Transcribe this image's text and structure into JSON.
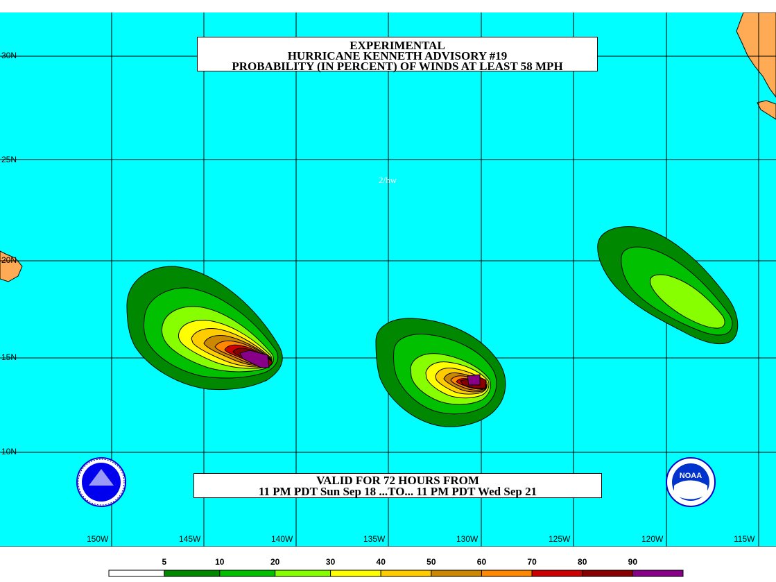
{
  "title": {
    "line1": "EXPERIMENTAL",
    "line2": "HURRICANE KENNETH ADVISORY #19",
    "line3": "PROBABILITY (IN PERCENT) OF WINDS AT LEAST 58 MPH"
  },
  "valid": {
    "line1": "VALID FOR 72 HOURS FROM",
    "line2": "11 PM PDT Sun Sep 18 ...TO... 11 PM PDT Wed Sep 21"
  },
  "note": "2/hw",
  "lat_labels": [
    "30N",
    "25N",
    "20N",
    "15N",
    "10N"
  ],
  "lon_labels": [
    "150W",
    "145W",
    "140W",
    "135W",
    "130W",
    "125W",
    "120W",
    "115W"
  ],
  "scale": {
    "labels": [
      "5",
      "10",
      "20",
      "30",
      "40",
      "50",
      "60",
      "70",
      "80",
      "90"
    ],
    "colors": [
      "#ffffff",
      "#008800",
      "#00c000",
      "#88ff00",
      "#ffff00",
      "#ffcc00",
      "#cc8800",
      "#ff8800",
      "#cc0000",
      "#880000",
      "#880088"
    ]
  },
  "colors": {
    "ocean": "#00ffff",
    "land": "#ffaa55"
  },
  "icons": {
    "left_logo": "nws-seal-icon",
    "right_logo": "noaa-logo-icon"
  }
}
